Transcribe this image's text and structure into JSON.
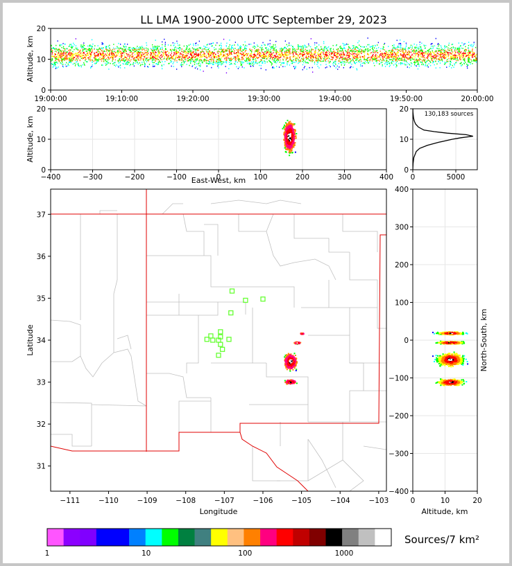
{
  "chart_data": [
    {
      "panel": "time-altitude",
      "type": "scatter",
      "title": "LL LMA 1900-2000 UTC September 29, 2023",
      "xlabel": "",
      "ylabel": "Altitude, km",
      "xlim": [
        "19:00:00",
        "20:00:00"
      ],
      "ylim": [
        0,
        20
      ],
      "x_ticks": [
        "19:00:00",
        "19:10:00",
        "19:20:00",
        "19:30:00",
        "19:40:00",
        "19:50:00",
        "20:00:00"
      ],
      "y_ticks": [
        0,
        10,
        20
      ],
      "source_band_km": {
        "min": 2,
        "max": 20,
        "peak": 11
      }
    },
    {
      "panel": "east-west-altitude",
      "type": "heatmap",
      "xlabel": "East-West, km",
      "ylabel": "Altitude, km",
      "xlim": [
        -400,
        400
      ],
      "ylim": [
        0,
        20
      ],
      "x_ticks": [
        -400,
        -300,
        -200,
        -100,
        0,
        100,
        200,
        300,
        400
      ],
      "y_ticks": [
        0,
        10,
        20
      ],
      "cluster": {
        "ew_km_min": 145,
        "ew_km_max": 200,
        "alt_km_min": 2,
        "alt_km_max": 20,
        "center_ew_km": 168,
        "center_alt_km": 11
      }
    },
    {
      "panel": "altitude-histogram",
      "type": "line",
      "annotation": "130,183 sources",
      "xlim": [
        0,
        7500
      ],
      "ylim": [
        0,
        20
      ],
      "x_ticks": [
        0,
        5000
      ],
      "y_ticks": [
        0,
        10,
        20
      ],
      "profile": {
        "altitude_km": [
          0,
          2,
          4,
          6,
          7,
          8,
          9,
          10,
          10.5,
          11,
          11.5,
          12,
          12.5,
          13,
          14,
          15,
          16,
          17,
          18,
          19,
          20
        ],
        "sources": [
          0,
          30,
          120,
          400,
          800,
          1700,
          3000,
          4600,
          5600,
          7000,
          6200,
          4000,
          2500,
          1300,
          650,
          320,
          170,
          90,
          45,
          20,
          5
        ]
      }
    },
    {
      "panel": "plan-view",
      "type": "scatter",
      "xlabel": "Longitude",
      "ylabel": "Latitude",
      "xlim": [
        -111.5,
        -102.8
      ],
      "ylim": [
        30.4,
        37.6
      ],
      "x_ticks": [
        -111,
        -110,
        -109,
        -108,
        -107,
        -106,
        -105,
        -104,
        -103
      ],
      "y_ticks": [
        31,
        32,
        33,
        34,
        35,
        36,
        37
      ],
      "stations": [
        {
          "lon": -106.8,
          "lat": 35.17
        },
        {
          "lon": -106.45,
          "lat": 34.95
        },
        {
          "lon": -106.0,
          "lat": 34.98
        },
        {
          "lon": -106.83,
          "lat": 34.65
        },
        {
          "lon": -107.1,
          "lat": 34.2
        },
        {
          "lon": -107.35,
          "lat": 34.1
        },
        {
          "lon": -107.1,
          "lat": 34.08
        },
        {
          "lon": -107.45,
          "lat": 34.02
        },
        {
          "lon": -107.3,
          "lat": 34.0
        },
        {
          "lon": -107.15,
          "lat": 34.0
        },
        {
          "lon": -106.88,
          "lat": 34.02
        },
        {
          "lon": -107.1,
          "lat": 33.9
        },
        {
          "lon": -107.05,
          "lat": 33.78
        },
        {
          "lon": -107.15,
          "lat": 33.64
        }
      ],
      "source_clusters": [
        {
          "lon": -105.3,
          "lat": 33.5,
          "spread_lon": 0.22,
          "spread_lat": 0.25
        },
        {
          "lon": -105.3,
          "lat": 33.02,
          "spread_lon": 0.2,
          "spread_lat": 0.07
        },
        {
          "lon": -105.12,
          "lat": 33.95,
          "spread_lon": 0.12,
          "spread_lat": 0.03
        },
        {
          "lon": -105.0,
          "lat": 34.17,
          "spread_lon": 0.06,
          "spread_lat": 0.02
        }
      ]
    },
    {
      "panel": "altitude-north-south",
      "type": "heatmap",
      "xlabel": "Altitude, km",
      "ylabel": "North-South, km",
      "xlim": [
        0,
        20
      ],
      "ylim": [
        -400,
        400
      ],
      "x_ticks": [
        0,
        10,
        20
      ],
      "y_ticks": [
        -400,
        -300,
        -200,
        -100,
        0,
        100,
        200,
        300,
        400
      ],
      "bands_ns_km": [
        20,
        -5,
        -50,
        -110
      ]
    },
    {
      "panel": "colorbar",
      "type": "heatmap",
      "label": "Sources/7 km²",
      "scale": "log",
      "range": [
        1,
        3000
      ],
      "tick_labels": [
        "1",
        "10",
        "100",
        "1000"
      ],
      "tick_values": [
        1,
        10,
        100,
        1000
      ],
      "colors": [
        "#ff55ff",
        "#8b00ff",
        "#8000ff",
        "#0000ff",
        "#0000ff",
        "#0080ff",
        "#00ffff",
        "#00ff00",
        "#008040",
        "#408080",
        "#ffff00",
        "#ffc080",
        "#ff8000",
        "#ff0080",
        "#ff0000",
        "#c00000",
        "#800000",
        "#000000",
        "#808080",
        "#c0c0c0",
        "#ffffff"
      ]
    }
  ]
}
